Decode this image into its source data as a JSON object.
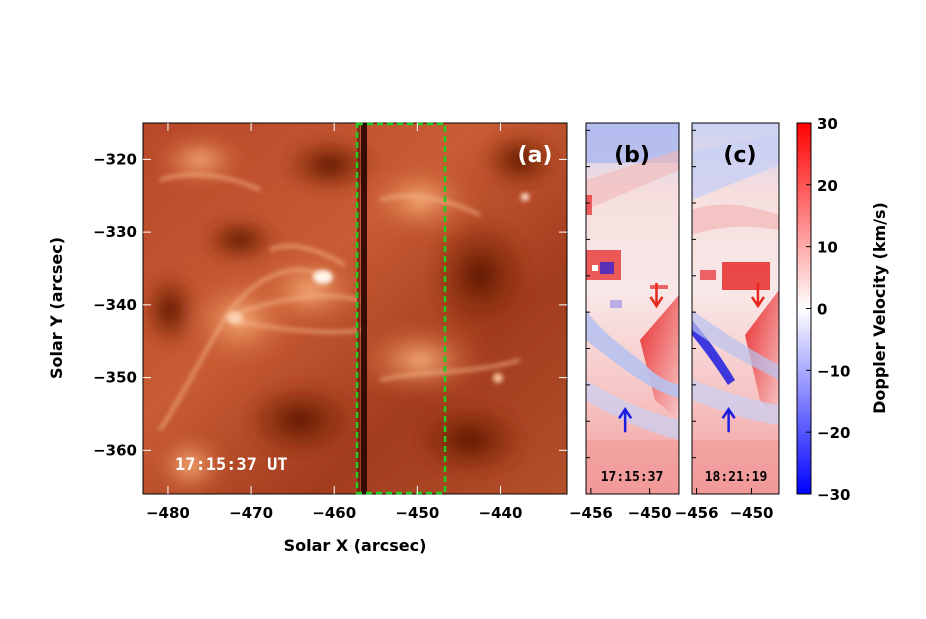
{
  "chart_data": [
    {
      "panel": "(a)",
      "type": "heatmap",
      "xlabel": "Solar X (arcsec)",
      "ylabel": "Solar Y (arcsec)",
      "xlim": [
        -483,
        -432
      ],
      "ylim": [
        -366,
        -315
      ],
      "x_ticks": [
        -480,
        -470,
        -460,
        -450,
        -440
      ],
      "y_ticks": [
        -320,
        -330,
        -340,
        -350,
        -360
      ],
      "timestamp": "17:15:37 UT",
      "highlight_box": {
        "x": [
          -456.5,
          -447
        ],
        "y": [
          -366,
          -315
        ],
        "color": "#22cc22",
        "style": "dashed"
      },
      "colormap": "red-orange"
    },
    {
      "panel": "(b)",
      "type": "heatmap",
      "xlim": [
        -456.5,
        -447
      ],
      "ylim": [
        -366,
        -315
      ],
      "x_ticks": [
        -456,
        -450
      ],
      "timestamp": "17:15:37",
      "arrows": [
        {
          "x": -449.3,
          "y": -338.5,
          "direction": "down",
          "color": "#e8281e"
        },
        {
          "x": -452.5,
          "y": -356,
          "direction": "up",
          "color": "#1c1ce0"
        }
      ]
    },
    {
      "panel": "(c)",
      "type": "heatmap",
      "xlim": [
        -456.5,
        -447
      ],
      "ylim": [
        -366,
        -315
      ],
      "x_ticks": [
        -456,
        -450
      ],
      "timestamp": "18:21:19",
      "arrows": [
        {
          "x": -449.3,
          "y": -338.5,
          "direction": "down",
          "color": "#e8281e"
        },
        {
          "x": -452.5,
          "y": -356,
          "direction": "up",
          "color": "#1c1ce0"
        }
      ]
    },
    {
      "panel": "colorbar",
      "type": "colorbar",
      "label": "Doppler Velocity (km/s)",
      "range": [
        -30,
        30
      ],
      "ticks": [
        30,
        20,
        10,
        0,
        -10,
        -20,
        -30
      ],
      "colors": {
        "low": "#0000ff",
        "mid": "#ffffff",
        "high": "#ff0000"
      }
    }
  ]
}
